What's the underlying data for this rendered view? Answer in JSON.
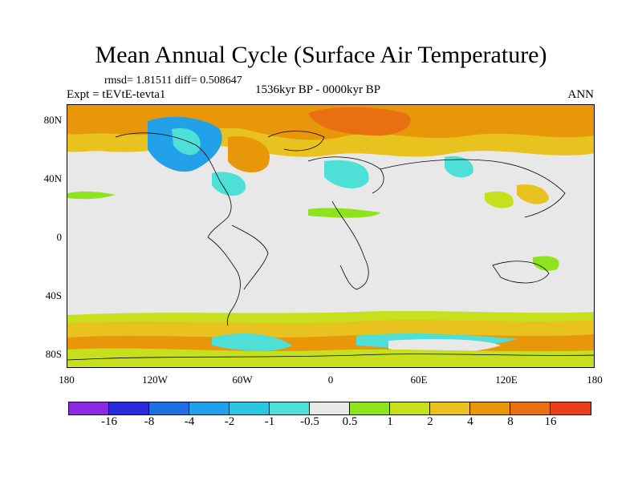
{
  "title": "Mean Annual Cycle (Surface Air Temperature)",
  "stats": "rmsd= 1.81511 diff= 0.508647",
  "experiment": "Expt = tEVtE-tevta1",
  "period": "1536kyr BP - 0000kyr BP",
  "season": "ANN",
  "map": {
    "lat_labels": [
      "80N",
      "40N",
      "0",
      "40S",
      "80S"
    ],
    "lon_labels": [
      "180",
      "120W",
      "60W",
      "0",
      "60E",
      "120E",
      "180"
    ]
  },
  "colorbar": {
    "labels": [
      "-16",
      "-8",
      "-4",
      "-2",
      "-1",
      "-0.5",
      "0.5",
      "1",
      "2",
      "4",
      "8",
      "16"
    ],
    "colors": [
      "#8a2be2",
      "#2a2ad8",
      "#1e6fe0",
      "#22a0e8",
      "#2cc6e0",
      "#4ee0d6",
      "#e8e8e8",
      "#8ee21e",
      "#c6e01e",
      "#e8c21e",
      "#e8960a",
      "#e87010",
      "#e8401a"
    ]
  }
}
